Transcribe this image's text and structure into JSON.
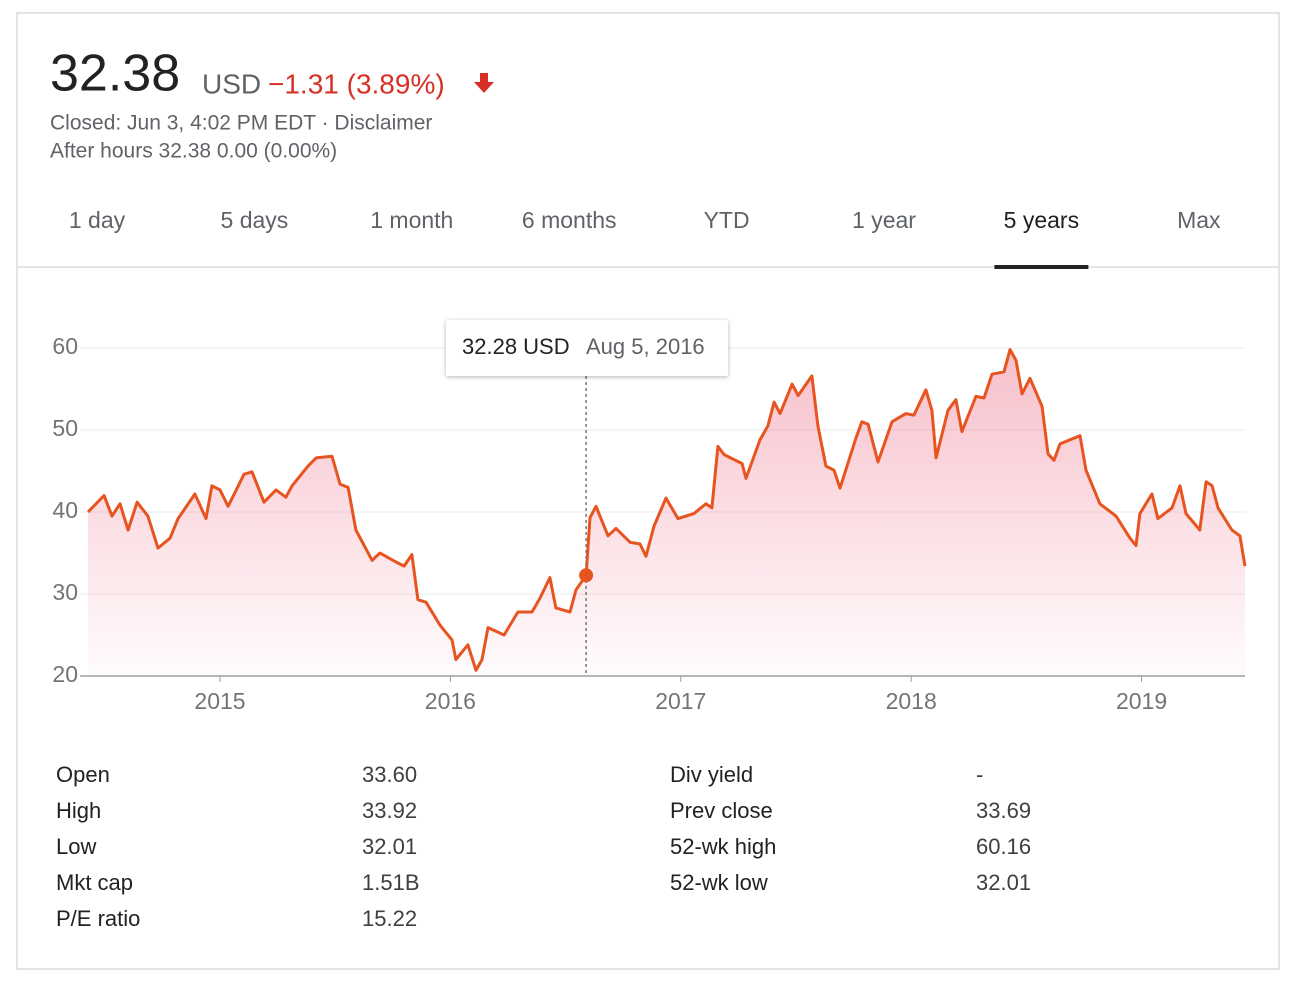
{
  "header": {
    "price": "32.38",
    "currency": "USD",
    "change": "−1.31 (3.89%)",
    "status": "Closed: Jun 3, 4:02 PM EDT · Disclaimer",
    "after_hours": "After hours 32.38 0.00 (0.00%)"
  },
  "tabs": [
    "1 day",
    "5 days",
    "1 month",
    "6 months",
    "YTD",
    "1 year",
    "5 years",
    "Max"
  ],
  "active_tab": 6,
  "chart_data": {
    "type": "line",
    "color": "#e8541f",
    "grid": true,
    "x": [
      2014.427,
      2014.497,
      2014.531,
      2014.566,
      2014.601,
      2014.64,
      2014.687,
      2014.731,
      2014.783,
      2014.818,
      2014.891,
      2014.939,
      2014.965,
      2015.0,
      2015.035,
      2015.104,
      2015.139,
      2015.191,
      2015.243,
      2015.286,
      2015.313,
      2015.382,
      2015.417,
      2015.486,
      2015.521,
      2015.556,
      2015.59,
      2015.66,
      2015.694,
      2015.764,
      2015.799,
      2015.833,
      2015.859,
      2015.894,
      2015.955,
      2016.007,
      2016.024,
      2016.076,
      2016.111,
      2016.137,
      2016.163,
      2016.233,
      2016.293,
      2016.354,
      2016.389,
      2016.432,
      2016.458,
      2016.519,
      2016.545,
      2016.589,
      2016.606,
      2016.632,
      2016.684,
      2016.719,
      2016.78,
      2016.823,
      2016.849,
      2016.884,
      2016.936,
      2016.988,
      2017.057,
      2017.109,
      2017.135,
      2017.161,
      2017.188,
      2017.266,
      2017.283,
      2017.344,
      2017.378,
      2017.405,
      2017.431,
      2017.483,
      2017.509,
      2017.569,
      2017.595,
      2017.63,
      2017.665,
      2017.691,
      2017.76,
      2017.786,
      2017.813,
      2017.856,
      2017.917,
      2017.977,
      2018.012,
      2018.064,
      2018.09,
      2018.108,
      2018.16,
      2018.194,
      2018.22,
      2018.281,
      2018.316,
      2018.351,
      2018.403,
      2018.429,
      2018.455,
      2018.481,
      2018.516,
      2018.568,
      2018.594,
      2018.62,
      2018.646,
      2018.733,
      2018.759,
      2018.819,
      2018.889,
      2018.95,
      2018.976,
      2018.993,
      2019.045,
      2019.071,
      2019.132,
      2019.167,
      2019.193,
      2019.253,
      2019.28,
      2019.306,
      2019.332,
      2019.392,
      2019.427,
      2019.449
    ],
    "values": [
      40.0,
      42.0,
      39.5,
      41.0,
      37.8,
      41.2,
      39.5,
      35.6,
      36.8,
      39.2,
      42.2,
      39.2,
      43.2,
      42.7,
      40.7,
      44.6,
      44.9,
      41.2,
      42.7,
      41.8,
      43.2,
      45.6,
      46.6,
      46.8,
      43.4,
      43.0,
      37.8,
      34.1,
      35.0,
      33.9,
      33.4,
      34.8,
      29.3,
      29.0,
      26.2,
      24.4,
      22.0,
      23.8,
      20.7,
      22.0,
      25.9,
      25.0,
      27.8,
      27.8,
      29.5,
      32.0,
      28.3,
      27.8,
      30.5,
      32.28,
      39.3,
      40.7,
      37.1,
      38.0,
      36.3,
      36.1,
      34.6,
      38.3,
      41.7,
      39.2,
      39.8,
      41.0,
      40.5,
      48.0,
      47.0,
      45.9,
      44.1,
      48.8,
      50.5,
      53.4,
      52.0,
      55.6,
      54.2,
      56.6,
      50.5,
      45.6,
      45.1,
      42.9,
      49.0,
      51.0,
      50.7,
      46.1,
      51.0,
      52.0,
      51.8,
      54.9,
      52.4,
      46.6,
      52.4,
      53.7,
      49.8,
      54.1,
      53.9,
      56.8,
      57.1,
      59.8,
      58.5,
      54.4,
      56.3,
      52.9,
      47.1,
      46.3,
      48.3,
      49.3,
      45.1,
      41.0,
      39.5,
      36.8,
      35.9,
      39.8,
      42.2,
      39.2,
      40.5,
      43.2,
      39.8,
      37.8,
      43.7,
      43.2,
      40.5,
      37.8,
      37.1,
      33.4
    ],
    "xlim": [
      2014.427,
      2019.449
    ],
    "xticks": [
      2015,
      2016,
      2017,
      2018,
      2019
    ],
    "ylim": [
      20,
      63
    ],
    "yticks": [
      20,
      30,
      40,
      50,
      60
    ],
    "tooltip": {
      "x": 2016.589,
      "value": 32.28,
      "value_label": "32.28 USD",
      "date": "Aug 5, 2016"
    }
  },
  "stats": {
    "left": [
      {
        "label": "Open",
        "value": "33.60"
      },
      {
        "label": "High",
        "value": "33.92"
      },
      {
        "label": "Low",
        "value": "32.01"
      },
      {
        "label": "Mkt cap",
        "value": "1.51B"
      },
      {
        "label": "P/E ratio",
        "value": "15.22"
      }
    ],
    "right": [
      {
        "label": "Div yield",
        "value": "-"
      },
      {
        "label": "Prev close",
        "value": "33.69"
      },
      {
        "label": "52-wk high",
        "value": "60.16"
      },
      {
        "label": "52-wk low",
        "value": "32.01"
      }
    ]
  }
}
